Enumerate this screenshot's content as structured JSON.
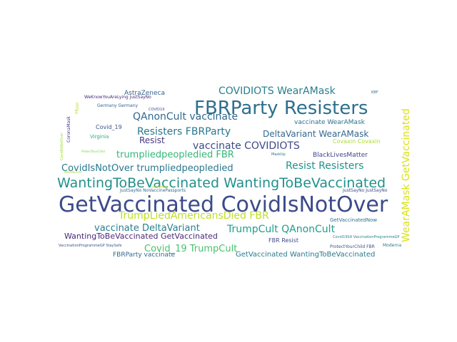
{
  "wordcloud": {
    "words": [
      {
        "text": "GetVaccinated CovidIsNotOver",
        "color": "#3b4a8a"
      },
      {
        "text": "FBRParty Resisters",
        "color": "#2e6e8e"
      },
      {
        "text": "WantingToBeVaccinated WantingToBeVaccinated",
        "color": "#21918c"
      },
      {
        "text": "WearAMask GetVaccinated",
        "color": "#d8e219"
      },
      {
        "text": "COVIDIOTS WearAMask",
        "color": "#277f8e"
      },
      {
        "text": "QAnonCult vaccinate",
        "color": "#31688e"
      },
      {
        "text": "Resisters FBRParty",
        "color": "#2a788e"
      },
      {
        "text": "vaccinate COVIDIOTS",
        "color": "#3e4989"
      },
      {
        "text": "DeltaVariant WearAMask",
        "color": "#31688e"
      },
      {
        "text": "trumpliedpeopledied FBR",
        "color": "#35b779"
      },
      {
        "text": "Resist",
        "color": "#443983"
      },
      {
        "text": "CovidIsNotOver trumpliedpeopledied",
        "color": "#2a788e"
      },
      {
        "text": "Resist Resisters",
        "color": "#21918c"
      },
      {
        "text": "TrumpLiedAmericansDied FBR",
        "color": "#bddf26"
      },
      {
        "text": "vaccinate DeltaVariant",
        "color": "#277f8e"
      },
      {
        "text": "TrumpCult QAnonCult",
        "color": "#1f9e89"
      },
      {
        "text": "WantingToBeVaccinated GetVaccinated",
        "color": "#482878"
      },
      {
        "text": "Covid_19 TrumpCult",
        "color": "#4ac16d"
      },
      {
        "text": "AstraZeneca",
        "color": "#355f8d"
      },
      {
        "text": "vaccinate WearAMask",
        "color": "#2c728e"
      },
      {
        "text": "Covaxin Covaxin",
        "color": "#addc30"
      },
      {
        "text": "BlackLivesMatter",
        "color": "#414487"
      },
      {
        "text": "FBR Resist",
        "color": "#3e4a89"
      },
      {
        "text": "GetVaccinatedNow",
        "color": "#2c728e"
      },
      {
        "text": "FBRParty vaccinate",
        "color": "#31688e"
      },
      {
        "text": "GetVaccinated WantingToBeVaccinated",
        "color": "#2a788e"
      },
      {
        "text": "Covid_19",
        "color": "#3b528b"
      },
      {
        "text": "Virginia",
        "color": "#29af7f"
      },
      {
        "text": "Germany Germany",
        "color": "#355f8d"
      },
      {
        "text": "WeKnowYouAreLying JustSayNo",
        "color": "#472d7b"
      },
      {
        "text": "Pfizer",
        "color": "#c2df23"
      },
      {
        "text": "CoronaMask",
        "color": "#443a83"
      },
      {
        "text": "JustSayNo NoVaccinePassports",
        "color": "#31688e"
      },
      {
        "text": "JustSayNo JustSayNo",
        "color": "#3e4a89"
      },
      {
        "text": "Moderna",
        "color": "#2a788e"
      },
      {
        "text": "ProtectYourChild FBR",
        "color": "#3b528b"
      },
      {
        "text": "VaccinationProgrammeGP StaySafe",
        "color": "#3b528b"
      },
      {
        "text": "MaskUp",
        "color": "#2d708e"
      },
      {
        "text": "KBF",
        "color": "#2c728e"
      },
      {
        "text": "COVID19",
        "color": "#3b528b"
      },
      {
        "text": "Covid19SA VaccinationProgrammeGP",
        "color": "#25858e"
      },
      {
        "text": "CovidIsNotOver",
        "color": "#a2da37"
      },
      {
        "text": "ProtectYourChild",
        "color": "#7ad151"
      },
      {
        "text": "NotAVaccine",
        "color": "#a0da39"
      },
      {
        "text": "WearAMask",
        "color": "#d0e11c"
      }
    ]
  }
}
